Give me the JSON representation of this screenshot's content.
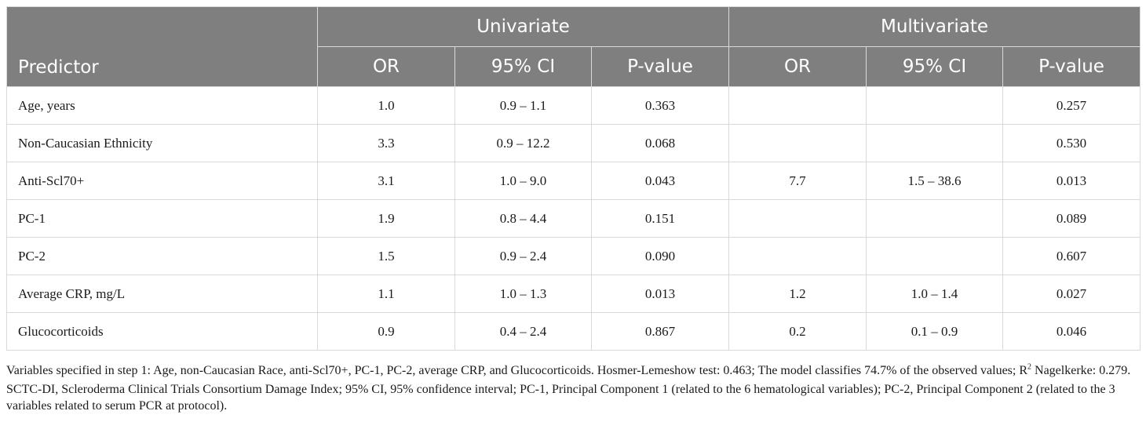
{
  "header": {
    "predictor": "Predictor",
    "groups": [
      "Univariate",
      "Multivariate"
    ],
    "columns": [
      "OR",
      "95% CI",
      "P-value",
      "OR",
      "95% CI",
      "P-value"
    ]
  },
  "rows": [
    {
      "label": "Age, years",
      "cells": [
        "1.0",
        "0.9 – 1.1",
        "0.363",
        "",
        "",
        "0.257"
      ]
    },
    {
      "label": "Non-Caucasian Ethnicity",
      "cells": [
        "3.3",
        "0.9 – 12.2",
        "0.068",
        "",
        "",
        "0.530"
      ]
    },
    {
      "label": "Anti-Scl70+",
      "cells": [
        "3.1",
        "1.0 – 9.0",
        "0.043",
        "7.7",
        "1.5 – 38.6",
        "0.013"
      ]
    },
    {
      "label": "PC-1",
      "cells": [
        "1.9",
        "0.8 – 4.4",
        "0.151",
        "",
        "",
        "0.089"
      ]
    },
    {
      "label": "PC-2",
      "cells": [
        "1.5",
        "0.9 – 2.4",
        "0.090",
        "",
        "",
        "0.607"
      ]
    },
    {
      "label": "Average CRP, mg/L",
      "cells": [
        "1.1",
        "1.0 – 1.3",
        "0.013",
        "1.2",
        "1.0 – 1.4",
        "0.027"
      ]
    },
    {
      "label": "Glucocorticoids",
      "cells": [
        "0.9",
        "0.4 – 2.4",
        "0.867",
        "0.2",
        "0.1 – 0.9",
        "0.046"
      ]
    }
  ],
  "notes": {
    "note1_before": "Variables specified in step 1: Age, non-Caucasian Race, anti-Scl70+, PC-1, PC-2, average CRP, and Glucocorticoids. Hosmer-Lemeshow test: 0.463; The model classifies 74.7% of the observed values; R",
    "note1_sup": "2",
    "note1_after": " Nagelkerke: 0.279.",
    "note2": "SCTC-DI, Scleroderma Clinical Trials Consortium Damage Index; 95% CI, 95% confidence interval; PC-1, Principal Component 1 (related to the 6 hematological variables); PC-2, Principal Component 2 (related to the 3 variables related to serum PCR at protocol)."
  }
}
